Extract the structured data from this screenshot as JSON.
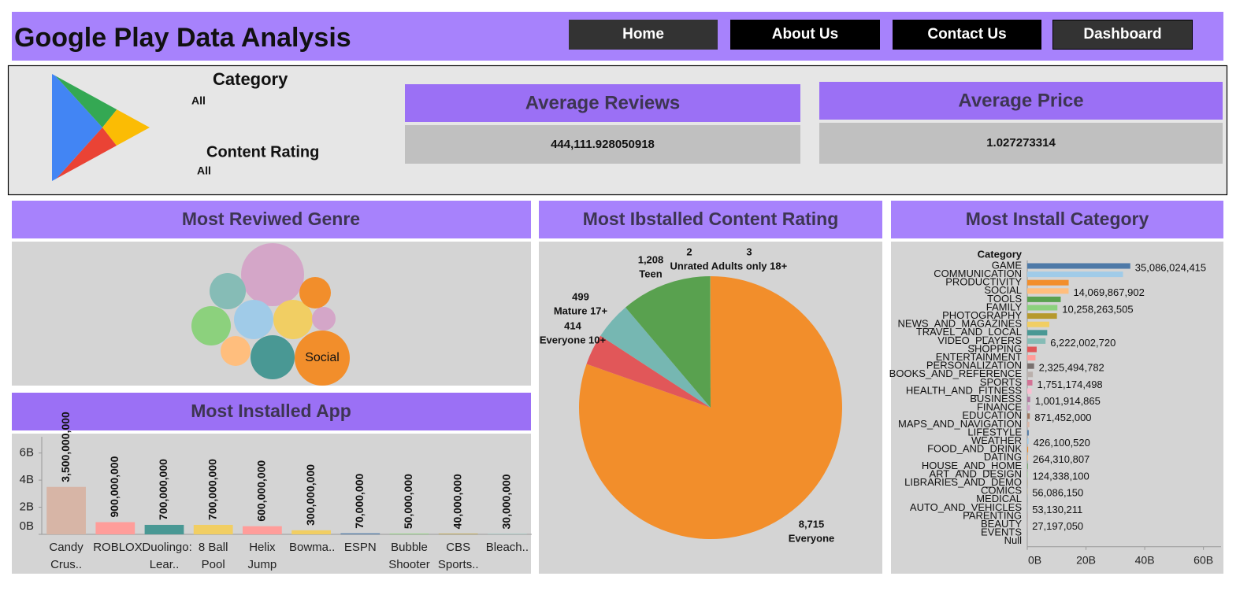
{
  "header": {
    "title": "Google Play Data Analysis",
    "nav": [
      "Home",
      "About Us",
      "Contact Us",
      "Dashboard"
    ]
  },
  "filters": [
    {
      "label": "Category",
      "value": "All"
    },
    {
      "label": "Content Rating",
      "value": "All"
    }
  ],
  "kpis": [
    {
      "title": "Average Reviews",
      "value": "444,111.928050918"
    },
    {
      "title": "Average Price",
      "value": "1.027273314"
    }
  ],
  "chart_data": [
    {
      "type": "bubble",
      "title": "Most Reviwed Genre",
      "categories": [
        null,
        "Social",
        null,
        null,
        null,
        null,
        null,
        null,
        null,
        null
      ],
      "values": [
        160000000,
        122500000,
        78400000,
        62500000,
        62500000,
        62500000,
        52900000,
        40000000,
        36100000,
        22500000
      ],
      "colors": [
        "#d4a6c8",
        "#f28e2b",
        "#499894",
        "#f1ce63",
        "#a0cbe8",
        "#8cd17d",
        "#86bcb6",
        "#f28e2b",
        "#ffbe7d",
        "#d4a6c8"
      ]
    },
    {
      "type": "bar",
      "title": "Most Installed App",
      "categories": [
        "Candy Crus..",
        "ROBLOX",
        "Duolingo: Lear..",
        "8 Ball Pool",
        "Helix Jump",
        "Bowma..",
        "ESPN",
        "Bubble Shooter",
        "CBS Sports..",
        "Bleach.."
      ],
      "values": [
        3500000000,
        900000000,
        700000000,
        700000000,
        600000000,
        300000000,
        70000000,
        50000000,
        40000000,
        30000000
      ],
      "value_labels": [
        "3,500,000,000",
        "900,000,000",
        "700,000,000",
        "700,000,000",
        "600,000,000",
        "300,000,000",
        "70,000,000",
        "50,000,000",
        "40,000,000",
        "30,000,000"
      ],
      "colors": [
        "#d7b5a6",
        "#ff9d9a",
        "#499894",
        "#f1ce63",
        "#ff9d9a",
        "#f1ce63",
        "#4e79a7",
        "#8cd17d",
        "#b6992d",
        "#86bcb6"
      ],
      "ylim": [
        0,
        7200000000
      ],
      "yticks": [
        {
          "value": 0,
          "label": "0B"
        },
        {
          "value": 2000000000,
          "label": "2B"
        },
        {
          "value": 4000000000,
          "label": "4B"
        },
        {
          "value": 6000000000,
          "label": "6B"
        }
      ]
    },
    {
      "type": "pie",
      "title": "Most Ibstalled Content Rating",
      "categories": [
        "Everyone",
        "Everyone 10+",
        "Mature 17+",
        "Teen",
        "Unrated",
        "Adults only 18+"
      ],
      "values": [
        8715,
        414,
        499,
        1208,
        2,
        3
      ],
      "value_labels": [
        "8,715",
        "414",
        "499",
        "1,208",
        "2",
        "3"
      ],
      "colors": [
        "#f28e2b",
        "#e15759",
        "#76b7b2",
        "#59a14f",
        "#4e79a7",
        "#edc948"
      ]
    },
    {
      "type": "hbar",
      "title": "Most Install Category",
      "axis_title": "Category",
      "categories": [
        "GAME",
        "COMMUNICATION",
        "PRODUCTIVITY",
        "SOCIAL",
        "TOOLS",
        "FAMILY",
        "PHOTOGRAPHY",
        "NEWS_AND_MAGAZINES",
        "TRAVEL_AND_LOCAL",
        "VIDEO_PLAYERS",
        "SHOPPING",
        "ENTERTAINMENT",
        "PERSONALIZATION",
        "BOOKS_AND_REFERENCE",
        "SPORTS",
        "HEALTH_AND_FITNESS",
        "BUSINESS",
        "FINANCE",
        "EDUCATION",
        "MAPS_AND_NAVIGATION",
        "LIFESTYLE",
        "WEATHER",
        "FOOD_AND_DRINK",
        "DATING",
        "HOUSE_AND_HOME",
        "ART_AND_DESIGN",
        "LIBRARIES_AND_DEMO",
        "COMICS",
        "MEDICAL",
        "AUTO_AND_VEHICLES",
        "PARENTING",
        "BEAUTY",
        "EVENTS",
        "Null"
      ],
      "values": [
        35086024415,
        32600000000,
        14100000000,
        14069867902,
        11400000000,
        10258263505,
        10100000000,
        7500000000,
        6800000000,
        6222002720,
        3200000000,
        2800000000,
        2325494782,
        1900000000,
        1751174498,
        1500000000,
        1001914865,
        900000000,
        871452000,
        700000000,
        500000000,
        426100520,
        300000000,
        264310807,
        200000000,
        124338100,
        60000000,
        56086150,
        50000000,
        53130211,
        30000000,
        27197050,
        15000000,
        0
      ],
      "value_labels": [
        "35,086,024,415",
        null,
        null,
        "14,069,867,902",
        null,
        "10,258,263,505",
        null,
        null,
        null,
        "6,222,002,720",
        null,
        null,
        "2,325,494,782",
        null,
        "1,751,174,498",
        null,
        "1,001,914,865",
        null,
        "871,452,000",
        null,
        null,
        "426,100,520",
        null,
        "264,310,807",
        null,
        "124,338,100",
        null,
        "56,086,150",
        null,
        "53,130,211",
        null,
        "27,197,050",
        null,
        null
      ],
      "palette": [
        "#4e79a7",
        "#a0cbe8",
        "#f28e2b",
        "#ffbe7d",
        "#59a14f",
        "#8cd17d",
        "#b6992d",
        "#f1ce63",
        "#499894",
        "#86bcb6",
        "#e15759",
        "#ff9d9a",
        "#79706e",
        "#bab0ac",
        "#d37295",
        "#fabfd2",
        "#b07aa1",
        "#d4a6c8",
        "#9d7660",
        "#d7b5a6"
      ],
      "xlim": [
        0,
        66000000000
      ],
      "xticks": [
        {
          "value": 0,
          "label": "0B"
        },
        {
          "value": 20000000000,
          "label": "20B"
        },
        {
          "value": 40000000000,
          "label": "40B"
        },
        {
          "value": 60000000000,
          "label": "60B"
        }
      ]
    }
  ]
}
